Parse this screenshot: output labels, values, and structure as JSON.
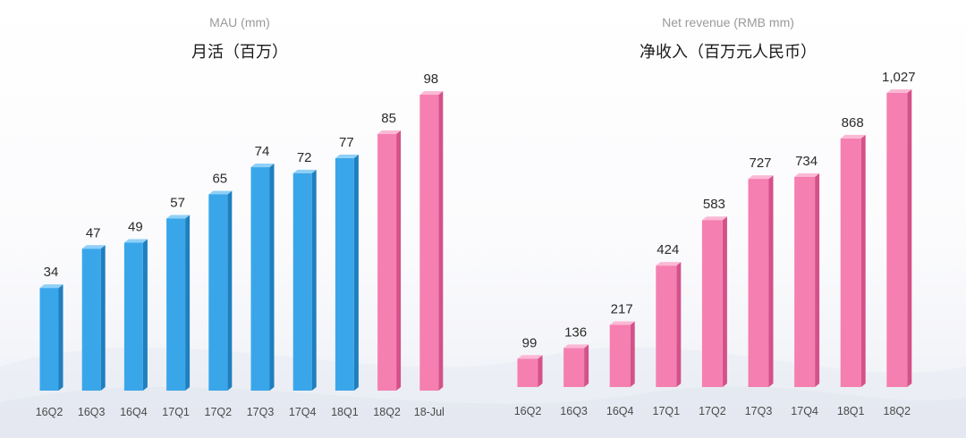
{
  "colors": {
    "blue_front": "#3aa6ea",
    "blue_side": "#1f7fbf",
    "blue_top": "#8fd0f7",
    "pink_front": "#f57fb0",
    "pink_side": "#d4518a",
    "pink_top": "#fbb8d4"
  },
  "chart_data": [
    {
      "type": "bar",
      "title": "MAU (mm)",
      "subtitle": "月活（百万）",
      "categories": [
        "16Q2",
        "16Q3",
        "16Q4",
        "17Q1",
        "17Q2",
        "17Q3",
        "17Q4",
        "18Q1",
        "18Q2",
        "18-Jul"
      ],
      "values": [
        34,
        47,
        49,
        57,
        65,
        74,
        72,
        77,
        85,
        98
      ],
      "value_labels": [
        "34",
        "47",
        "49",
        "57",
        "65",
        "74",
        "72",
        "77",
        "85",
        "98"
      ],
      "bar_colors": [
        "blue",
        "blue",
        "blue",
        "blue",
        "blue",
        "blue",
        "blue",
        "blue",
        "pink",
        "pink"
      ],
      "ylim": [
        0,
        98
      ],
      "grid": false,
      "legend": false
    },
    {
      "type": "bar",
      "title": "Net revenue (RMB mm)",
      "subtitle": "净收入（百万元人民币）",
      "categories": [
        "16Q2",
        "16Q3",
        "16Q4",
        "17Q1",
        "17Q2",
        "17Q3",
        "17Q4",
        "18Q1",
        "18Q2"
      ],
      "values": [
        99,
        136,
        217,
        424,
        583,
        727,
        734,
        868,
        1027
      ],
      "value_labels": [
        "99",
        "136",
        "217",
        "424",
        "583",
        "727",
        "734",
        "868",
        "1,027"
      ],
      "bar_colors": [
        "pink",
        "pink",
        "pink",
        "pink",
        "pink",
        "pink",
        "pink",
        "pink",
        "pink"
      ],
      "ylim": [
        0,
        1027
      ],
      "grid": false,
      "legend": false
    }
  ]
}
